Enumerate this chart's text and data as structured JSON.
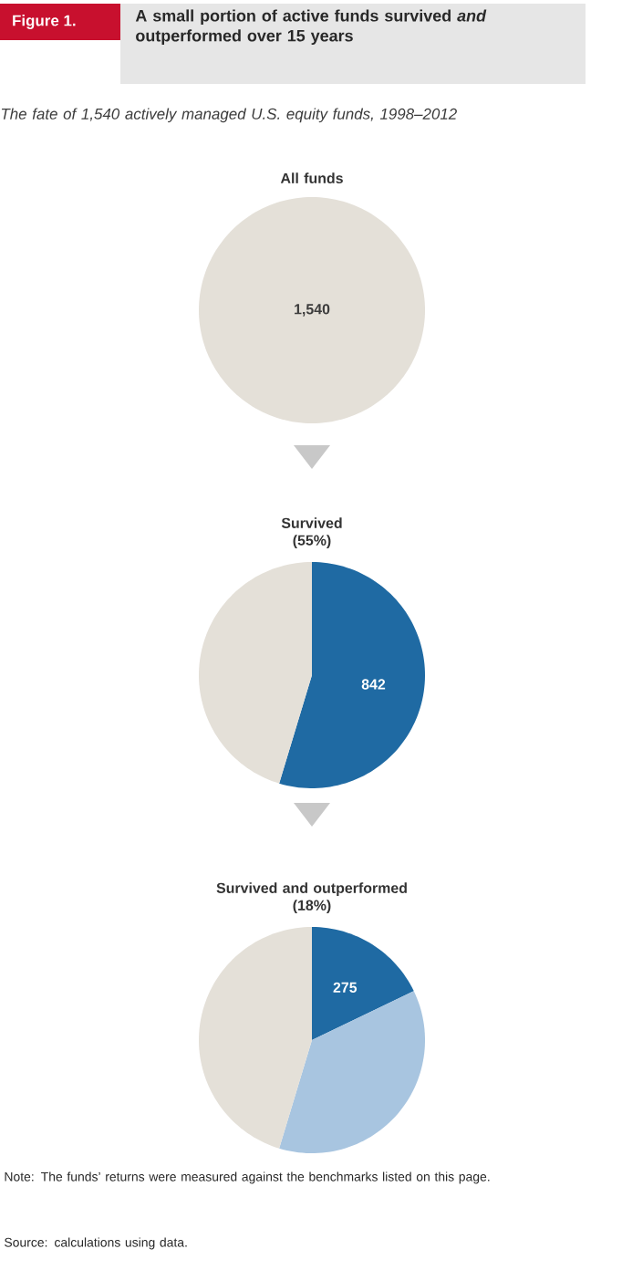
{
  "chart_data": [
    {
      "type": "pie",
      "title": "All funds",
      "categories": [
        null
      ],
      "values": [
        1540
      ],
      "colors": [
        "#e4e0d8"
      ],
      "value_labels": [
        "1,540"
      ],
      "annotations": [
        "Figure 1.",
        "A small portion of active funds survived *and* outperformed over 15 years",
        "The fate of 1,540 actively managed U.S. equity funds, 1998–2012"
      ]
    },
    {
      "type": "pie",
      "title": "Survived",
      "subtitle": "(55%)",
      "categories": [
        null,
        null
      ],
      "values": [
        842,
        698
      ],
      "colors": [
        "#1f6aa3",
        "#e4e0d8"
      ],
      "value_labels": [
        "842",
        null
      ]
    },
    {
      "type": "pie",
      "title": "Survived and outperformed",
      "subtitle": "(18%)",
      "categories": [
        null,
        null,
        null
      ],
      "values": [
        275,
        567,
        698
      ],
      "colors": [
        "#1f6aa3",
        "#a8c5e0",
        "#e4e0d8"
      ],
      "value_labels": [
        "275",
        null,
        null
      ],
      "annotations": [
        "Note: The funds’ returns were measured against the benchmarks listed on this page.",
        "Source: calculations using data."
      ]
    }
  ]
}
